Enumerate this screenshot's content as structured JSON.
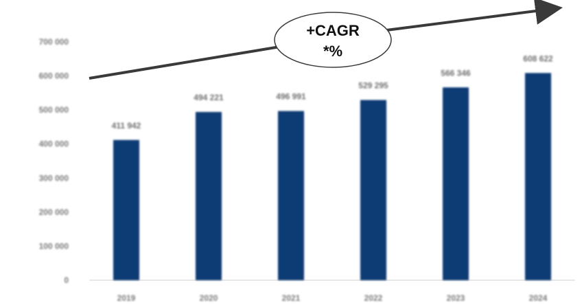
{
  "chart_data": {
    "type": "bar",
    "categories": [
      "2019",
      "2020",
      "2021",
      "2022",
      "2023",
      "2024"
    ],
    "values": [
      411942,
      494221,
      496991,
      529295,
      566346,
      608622
    ],
    "value_labels": [
      "411 942",
      "494 221",
      "496 991",
      "529 295",
      "566 346",
      "608 622"
    ],
    "ylim": [
      0,
      700000
    ],
    "yticks": [
      0,
      100000,
      200000,
      300000,
      400000,
      500000,
      600000,
      700000
    ],
    "ytick_labels": [
      "0",
      "100 000",
      "200 000",
      "300 000",
      "400 000",
      "500 000",
      "600 000",
      "700 000"
    ],
    "title": "",
    "xlabel": "",
    "ylabel": "",
    "grid": false,
    "annotation": {
      "line1": "+CAGR",
      "line2": "*%"
    },
    "colors": {
      "bar": "#0b3a73",
      "text": "#111111",
      "tick": "#7a7a7a",
      "axis": "#d0d0d0",
      "arrow": "#3a3a3a"
    }
  }
}
